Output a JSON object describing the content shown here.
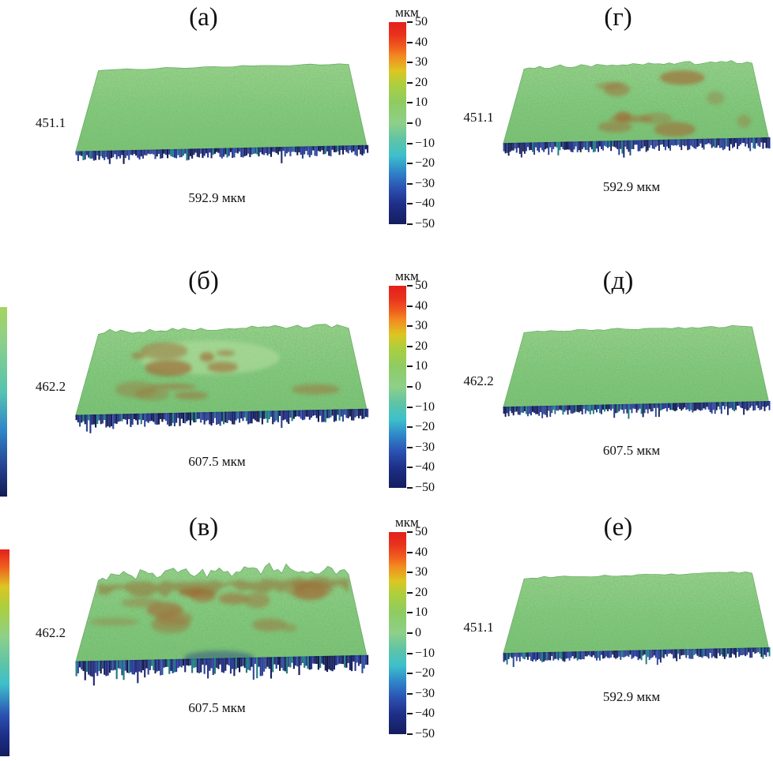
{
  "figure": {
    "panels": [
      {
        "id": "a",
        "label": "(а)",
        "height_label": "451.1",
        "width_label": "592.9 мкм",
        "texture": "smooth"
      },
      {
        "id": "b",
        "label": "(б)",
        "height_label": "462.2",
        "width_label": "607.5 мкм",
        "texture": "rough"
      },
      {
        "id": "v",
        "label": "(в)",
        "height_label": "462.2",
        "width_label": "607.5 мкм",
        "texture": "very-rough"
      },
      {
        "id": "g",
        "label": "(г)",
        "height_label": "451.1",
        "width_label": "592.9 мкм",
        "texture": "patchy"
      },
      {
        "id": "d",
        "label": "(д)",
        "height_label": "462.2",
        "width_label": "607.5 мкм",
        "texture": "fine"
      },
      {
        "id": "e",
        "label": "(е)",
        "height_label": "451.1",
        "width_label": "592.9 мкм",
        "texture": "fine"
      }
    ],
    "colorbar": {
      "title": "мкм",
      "ticks": [
        "50",
        "40",
        "30",
        "20",
        "10",
        "0",
        "−10",
        "−20",
        "−30",
        "−40",
        "−50"
      ],
      "range": [
        -50,
        50
      ],
      "gradient": [
        "#e3201d",
        "#f05a1e",
        "#ddc522",
        "#abcf3e",
        "#8ed089",
        "#3ec0cb",
        "#2b52b2",
        "#141d5e"
      ]
    },
    "colors": {
      "surface_green": "#84c97a",
      "patch_brown": "#a0713a",
      "fringe_navy": "#1f2a73",
      "fringe_teal": "#1d7a82",
      "background": "#ffffff"
    }
  },
  "chart_data": [
    {
      "type": "heatmap",
      "title": "(а)",
      "x_extent": "592.9 мкм",
      "y_extent": "451.1",
      "z_unit": "мкм",
      "z_range": [
        -50,
        50
      ],
      "z_ticks": [
        50,
        40,
        30,
        20,
        10,
        0,
        -10,
        -20,
        -30,
        -40,
        -50
      ],
      "surface": "smooth uniform near 0 мкм"
    },
    {
      "type": "heatmap",
      "title": "(б)",
      "x_extent": "607.5 мкм",
      "y_extent": "462.2",
      "z_unit": "мкм",
      "z_range": [
        -50,
        50
      ],
      "z_ticks": [
        50,
        40,
        30,
        20,
        10,
        0,
        -10,
        -20,
        -30,
        -40,
        -50
      ],
      "surface": "rough, scattered elevated brown patches"
    },
    {
      "type": "heatmap",
      "title": "(в)",
      "x_extent": "607.5 мкм",
      "y_extent": "462.2",
      "z_unit": "мкм",
      "z_range": [
        -50,
        50
      ],
      "z_ticks": [
        50,
        40,
        30,
        20,
        10,
        0,
        -10,
        -20,
        -30,
        -40,
        -50
      ],
      "surface": "very rough, spiky ridges with brown band and deep blue pits"
    },
    {
      "type": "heatmap",
      "title": "(г)",
      "x_extent": "592.9 мкм",
      "y_extent": "451.1",
      "z_unit": "мкм",
      "z_range": [
        -50,
        50
      ],
      "z_ticks": [
        50,
        40,
        30,
        20,
        10,
        0,
        -10,
        -20,
        -30,
        -40,
        -50
      ],
      "surface": "mottled with scattered brown patches"
    },
    {
      "type": "heatmap",
      "title": "(д)",
      "x_extent": "607.5 мкм",
      "y_extent": "462.2",
      "z_unit": "мкм",
      "z_range": [
        -50,
        50
      ],
      "z_ticks": [
        50,
        40,
        30,
        20,
        10,
        0,
        -10,
        -20,
        -30,
        -40,
        -50
      ],
      "surface": "fine uniform texture near 0 мкм"
    },
    {
      "type": "heatmap",
      "title": "(е)",
      "x_extent": "592.9 мкм",
      "y_extent": "451.1",
      "z_unit": "мкм",
      "z_range": [
        -50,
        50
      ],
      "z_ticks": [
        50,
        40,
        30,
        20,
        10,
        0,
        -10,
        -20,
        -30,
        -40,
        -50
      ],
      "surface": "fine uniform texture near 0 мкм"
    }
  ]
}
